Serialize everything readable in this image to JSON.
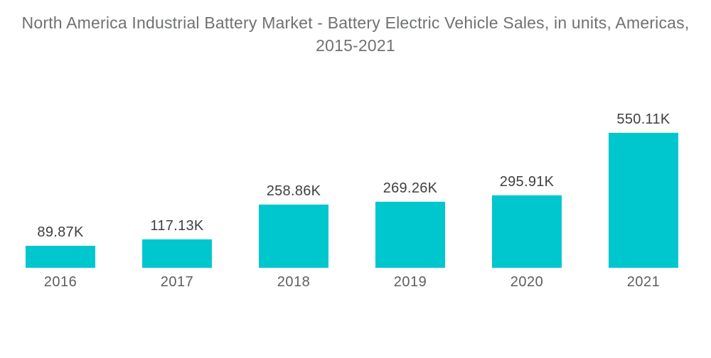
{
  "title": {
    "text": "North America Industrial Battery Market - Battery Electric Vehicle Sales, in units, Americas, 2015-2021",
    "color": "#6f7173"
  },
  "chart_data": {
    "type": "bar",
    "title": "North America Industrial Battery Market - Battery Electric Vehicle Sales, in units, Americas, 2015-2021",
    "categories": [
      "2016",
      "2017",
      "2018",
      "2019",
      "2020",
      "2021"
    ],
    "values": [
      89.87,
      117.13,
      258.86,
      269.26,
      295.91,
      550.11
    ],
    "value_labels": [
      "89.87K",
      "117.13K",
      "258.86K",
      "269.26K",
      "295.91K",
      "550.11K"
    ],
    "units": "units (K = thousands)",
    "xlabel": "",
    "ylabel": "",
    "grid": false,
    "legend": false,
    "bar_color": "#00c7ce",
    "value_label_color": "#3d3f40",
    "category_label_color": "#5c5e60",
    "background_color": "#ffffff"
  }
}
